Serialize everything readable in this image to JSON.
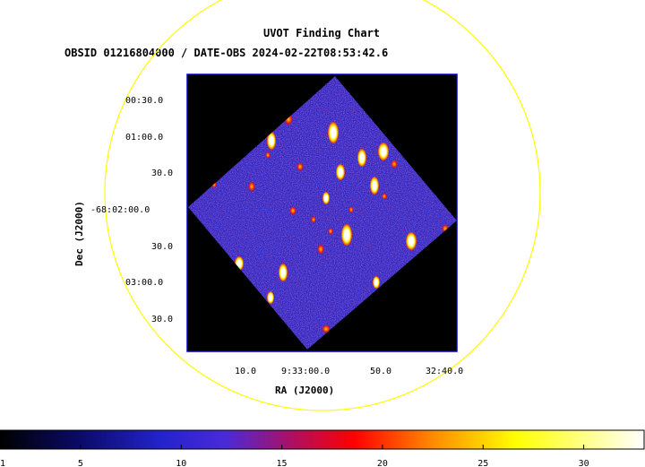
{
  "header": {
    "title": "UVOT Finding Chart",
    "subtitle": "OBSID 01216804000 / DATE-OBS 2024-02-22T08:53:42.6"
  },
  "axes": {
    "xlabel": "RA (J2000)",
    "ylabel": "Dec (J2000)",
    "ra_ticks": [
      "10.0",
      "9:33:00.0",
      "50.0",
      "32:40.0"
    ],
    "dec_ticks": [
      "00:30.0",
      "01:00.0",
      "30.0",
      "-68:02:00.0",
      "30.0",
      "03:00.0",
      "30.0"
    ]
  },
  "colorbar": {
    "ticks": [
      "1",
      "5",
      "10",
      "15",
      "20",
      "25",
      "30"
    ],
    "min": 1,
    "max": 33,
    "colormap": [
      "#000000",
      "#1e1ecc",
      "#3a3aff",
      "#ff0000",
      "#ffff00",
      "#ffffff"
    ]
  },
  "colors": {
    "field_circle": "#ffff00",
    "frame": "#0000cc",
    "background": "#000000"
  }
}
